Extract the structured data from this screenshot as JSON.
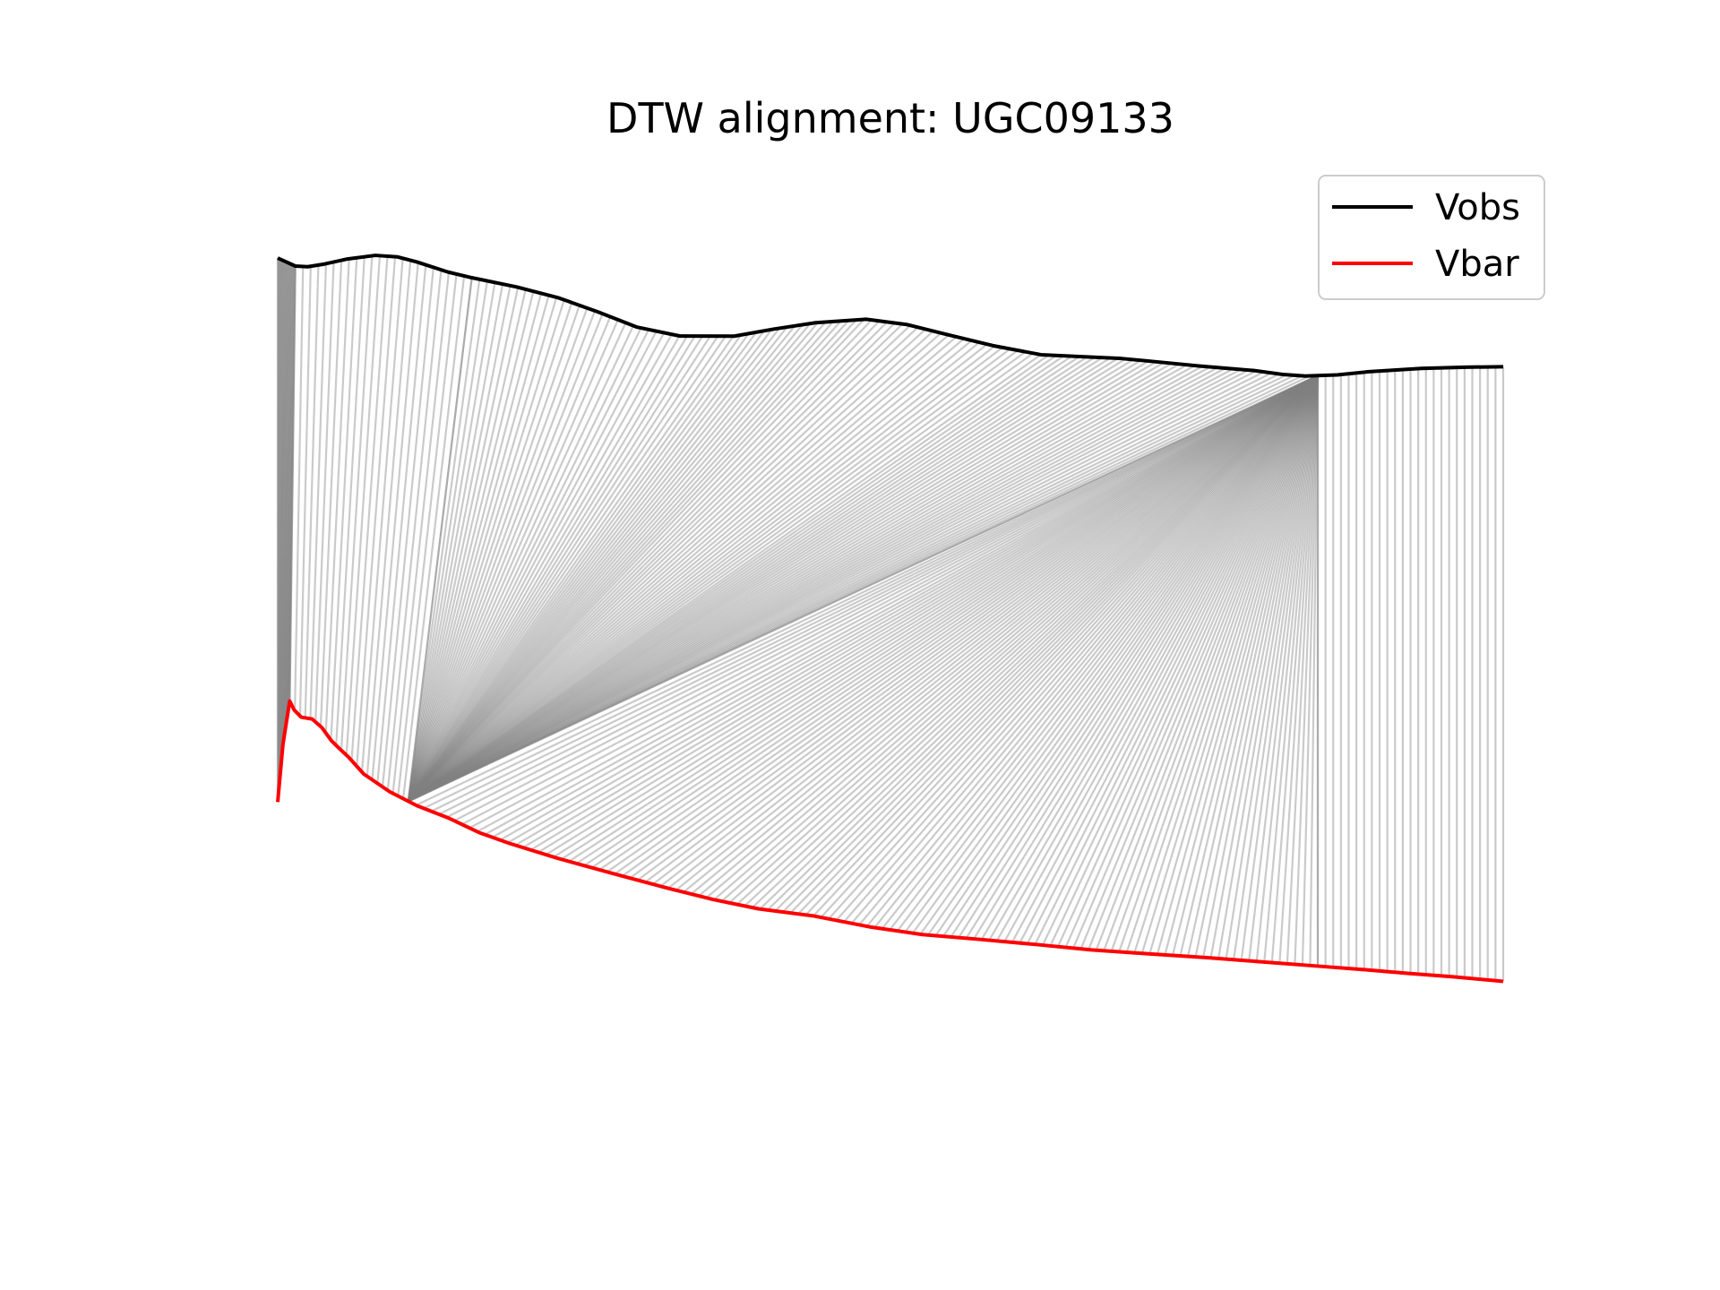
{
  "chart_data": {
    "type": "line",
    "title": "DTW alignment: UGC09133",
    "xlabel": "",
    "ylabel": "",
    "axes_visible": false,
    "grid": false,
    "legend_position": "top-right",
    "x_range": [
      0,
      1
    ],
    "y_range": [
      0,
      1
    ],
    "series": [
      {
        "name": "Vobs",
        "color": "#000000",
        "x": [
          0.0,
          0.0144,
          0.0245,
          0.0382,
          0.0569,
          0.0797,
          0.0975,
          0.1136,
          0.1388,
          0.1584,
          0.1949,
          0.2294,
          0.2612,
          0.2928,
          0.3283,
          0.3725,
          0.405,
          0.4389,
          0.4802,
          0.5131,
          0.5447,
          0.5837,
          0.6228,
          0.6639,
          0.6883,
          0.7138,
          0.7514,
          0.7967,
          0.8201,
          0.8385,
          0.8488,
          0.8646,
          0.8908,
          0.9332,
          0.9702,
          1.0
        ],
        "y": [
          0.8976,
          0.8894,
          0.8887,
          0.8915,
          0.8967,
          0.9004,
          0.8989,
          0.8936,
          0.8833,
          0.8774,
          0.8679,
          0.8566,
          0.8423,
          0.8267,
          0.8174,
          0.8173,
          0.8246,
          0.8311,
          0.8347,
          0.8293,
          0.8194,
          0.8075,
          0.7982,
          0.7957,
          0.7943,
          0.7913,
          0.7866,
          0.7819,
          0.7779,
          0.7763,
          0.7767,
          0.7774,
          0.7808,
          0.7841,
          0.7854,
          0.7858
        ]
      },
      {
        "name": "Vbar",
        "color": "#ff0000",
        "x": [
          0.0,
          0.0043,
          0.0098,
          0.0133,
          0.0192,
          0.0281,
          0.0361,
          0.0438,
          0.0503,
          0.0578,
          0.0702,
          0.0912,
          0.1136,
          0.1398,
          0.1643,
          0.1895,
          0.2284,
          0.2765,
          0.3206,
          0.3552,
          0.3923,
          0.4377,
          0.4828,
          0.5262,
          0.5735,
          0.6197,
          0.6642,
          0.7107,
          0.7584,
          0.7998,
          0.8474,
          0.8862,
          0.9219,
          0.9592,
          1.0
        ],
        "y": [
          0.338,
          0.3975,
          0.4419,
          0.4329,
          0.4253,
          0.4234,
          0.4145,
          0.4011,
          0.393,
          0.3842,
          0.3668,
          0.3487,
          0.3342,
          0.3213,
          0.3066,
          0.2953,
          0.2801,
          0.2634,
          0.2486,
          0.2377,
          0.2281,
          0.2207,
          0.2096,
          0.2016,
          0.1966,
          0.1913,
          0.1858,
          0.1818,
          0.1779,
          0.1739,
          0.1693,
          0.1656,
          0.1618,
          0.1582,
          0.1535
        ]
      }
    ],
    "alignment_lines": {
      "color": "#808080",
      "description_groups": [
        {
          "vobs_x": [
            0.0,
            0.0144
          ],
          "vbar_x": [
            0.0,
            0.0098
          ]
        },
        {
          "vobs_x": [
            0.0144,
            0.1584
          ],
          "vbar_x": [
            0.0098,
            0.1066
          ]
        },
        {
          "vobs_x": [
            0.1584,
            0.8487
          ],
          "vbar_x": [
            0.1066,
            0.1066
          ]
        },
        {
          "vobs_x": [
            0.8487,
            0.8487
          ],
          "vbar_x": [
            0.1066,
            0.8487
          ]
        },
        {
          "vobs_x": [
            0.8487,
            1.0
          ],
          "vbar_x": [
            0.8487,
            1.0
          ]
        }
      ]
    }
  }
}
